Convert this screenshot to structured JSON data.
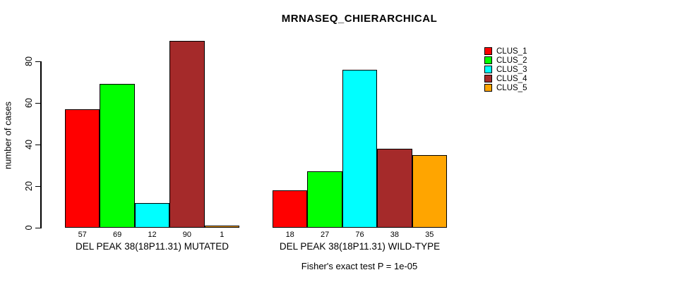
{
  "chart_data": {
    "type": "bar",
    "title": "MRNASEQ_CHIERARCHICAL",
    "ylabel": "number of cases",
    "xlabel": "",
    "ylim": [
      0,
      90
    ],
    "yticks": [
      0,
      20,
      40,
      60,
      80
    ],
    "grid": false,
    "legend_position": "top-right",
    "bar_border_color": "#000000",
    "categories": [
      "DEL PEAK 38(18P11.31) MUTATED",
      "DEL PEAK 38(18P11.31) WILD-TYPE"
    ],
    "series": [
      {
        "name": "CLUS_1",
        "color": "#ff0000",
        "values": [
          57,
          18
        ]
      },
      {
        "name": "CLUS_2",
        "color": "#00ff00",
        "values": [
          69,
          27
        ]
      },
      {
        "name": "CLUS_3",
        "color": "#00ffff",
        "values": [
          12,
          76
        ]
      },
      {
        "name": "CLUS_4",
        "color": "#a52a2a",
        "values": [
          90,
          38
        ]
      },
      {
        "name": "CLUS_5",
        "color": "#ffa500",
        "values": [
          1,
          35
        ]
      }
    ],
    "bar_value_labels": [
      [
        57,
        69,
        12,
        90,
        1
      ],
      [
        18,
        27,
        76,
        38,
        35
      ]
    ],
    "annotation": "Fisher's exact test P = 1e-05"
  }
}
